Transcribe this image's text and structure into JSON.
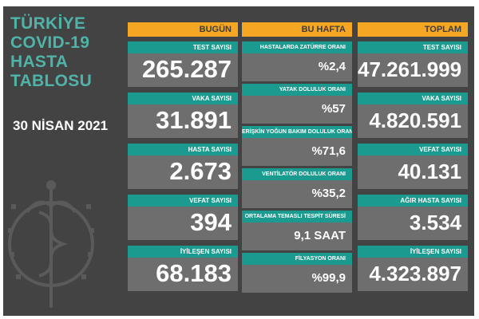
{
  "title_lines": [
    "TÜRKİYE",
    "COVID-19",
    "HASTA",
    "TABLOSU"
  ],
  "date": "30 NİSAN 2021",
  "columns": {
    "today": "BUGÜN",
    "week": "BU HAFTA",
    "total": "TOPLAM"
  },
  "today": [
    {
      "label": "TEST SAYISI",
      "value": "265.287"
    },
    {
      "label": "VAKA SAYISI",
      "value": "31.891"
    },
    {
      "label": "HASTA SAYISI",
      "value": "2.673"
    },
    {
      "label": "VEFAT SAYISI",
      "value": "394"
    },
    {
      "label": "İYİLEŞEN SAYISI",
      "value": "68.183"
    }
  ],
  "week": [
    {
      "label": "HASTALARDA ZATÜRRE ORANI",
      "value": "%2,4"
    },
    {
      "label": "YATAK DOLULUK ORANI",
      "value": "%57"
    },
    {
      "label": "ERİŞKİN YOĞUN BAKIM DOLULUK ORANI",
      "value": "%71,6"
    },
    {
      "label": "VENTİLATÖR DOLULUK ORANI",
      "value": "%35,2"
    },
    {
      "label": "ORTALAMA TEMASLI TESPİT SÜRESİ",
      "value": "9,1 SAAT"
    },
    {
      "label": "FİLYASYON ORANI",
      "value": "%99,9"
    }
  ],
  "total": [
    {
      "label": "TEST SAYISI",
      "value": "47.261.999"
    },
    {
      "label": "VAKA SAYISI",
      "value": "4.820.591"
    },
    {
      "label": "VEFAT SAYISI",
      "value": "40.131"
    },
    {
      "label": "AĞIR HASTA SAYISI",
      "value": "3.534"
    },
    {
      "label": "İYİLEŞEN SAYISI",
      "value": "4.323.897"
    }
  ],
  "colors": {
    "background": "#434343",
    "accent_teal": "#1b9a8f",
    "title_teal": "#4fb3a8",
    "header_orange": "#f5a623",
    "value_gray": "#6e6e6e"
  },
  "icons": [
    "health-ministry-emblem-icon"
  ]
}
